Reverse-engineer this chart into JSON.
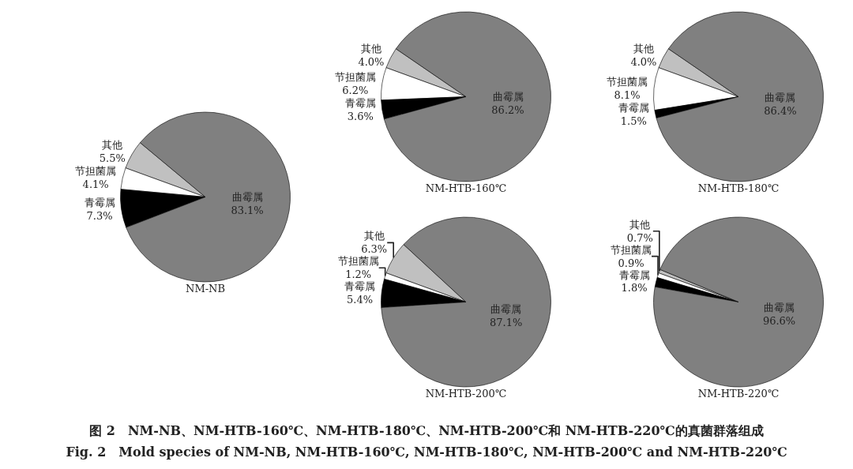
{
  "chart_data": [
    {
      "type": "pie",
      "title": "NM-NB",
      "categories": [
        "其他",
        "节担菌属",
        "青霉属",
        "曲霉属"
      ],
      "values": [
        5.5,
        4.1,
        7.3,
        83.1
      ],
      "value_labels": [
        "5.5%",
        "4.1%",
        "7.3%",
        "83.1%"
      ],
      "colors": [
        "#c0c0c0",
        "#ffffff",
        "#000000",
        "#808080"
      ],
      "annotations": [
        "图 2　NM-NB、NM-HTB-160℃、NM-HTB-180℃、NM-HTB-200℃和 NM-HTB-220℃的真菌群落组成",
        "Fig. 2　Mold species of NM-NB, NM-HTB-160℃, NM-HTB-180℃, NM-HTB-200℃ and NM-HTB-220℃"
      ]
    },
    {
      "type": "pie",
      "title": "NM-HTB-160℃",
      "categories": [
        "其他",
        "节担菌属",
        "青霉属",
        "曲霉属"
      ],
      "values": [
        4.0,
        6.2,
        3.6,
        86.2
      ],
      "value_labels": [
        "4.0%",
        "6.2%",
        "3.6%",
        "86.2%"
      ],
      "colors": [
        "#c0c0c0",
        "#ffffff",
        "#000000",
        "#808080"
      ]
    },
    {
      "type": "pie",
      "title": "NM-HTB-180℃",
      "categories": [
        "其他",
        "节担菌属",
        "青霉属",
        "曲霉属"
      ],
      "values": [
        4.0,
        8.1,
        1.5,
        86.4
      ],
      "value_labels": [
        "4.0%",
        "8.1%",
        "1.5%",
        "86.4%"
      ],
      "colors": [
        "#c0c0c0",
        "#ffffff",
        "#000000",
        "#808080"
      ]
    },
    {
      "type": "pie",
      "title": "NM-HTB-200℃",
      "categories": [
        "其他",
        "节担菌属",
        "青霉属",
        "曲霉属"
      ],
      "values": [
        6.3,
        1.2,
        5.4,
        87.1
      ],
      "value_labels": [
        "6.3%",
        "1.2%",
        "5.4%",
        "87.1%"
      ],
      "colors": [
        "#c0c0c0",
        "#ffffff",
        "#000000",
        "#808080"
      ]
    },
    {
      "type": "pie",
      "title": "NM-HTB-220℃",
      "categories": [
        "其他",
        "节担菌属",
        "青霉属",
        "曲霉属"
      ],
      "values": [
        0.7,
        0.9,
        1.8,
        96.6
      ],
      "value_labels": [
        "0.7%",
        "0.9%",
        "1.8%",
        "96.6%"
      ],
      "colors": [
        "#c0c0c0",
        "#ffffff",
        "#000000",
        "#808080"
      ]
    }
  ]
}
